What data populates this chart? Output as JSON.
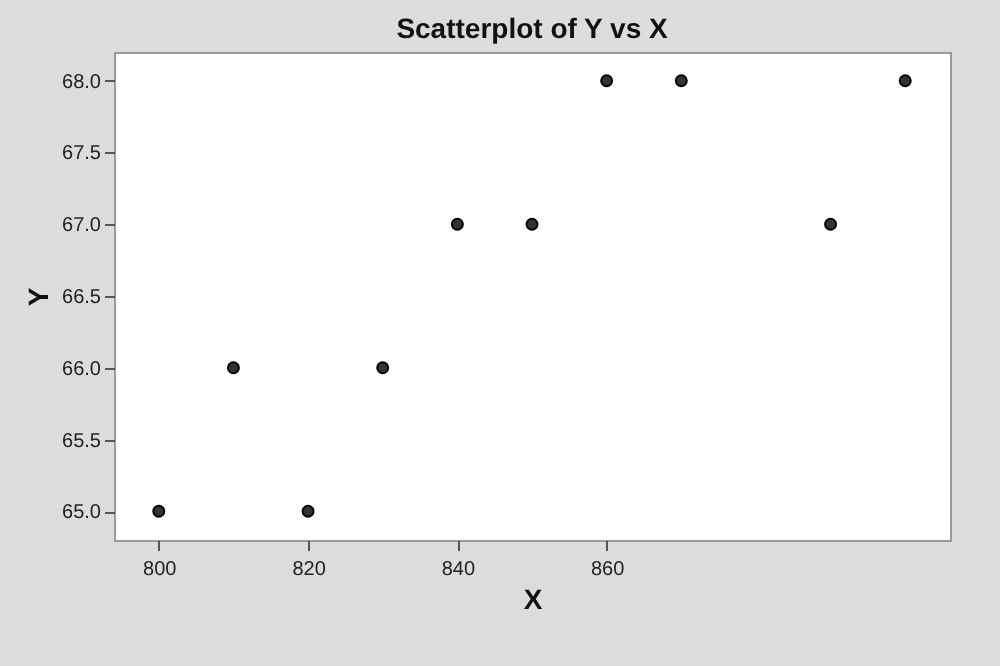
{
  "chart_data": {
    "type": "scatter",
    "title": "Scatterplot of Y vs X",
    "xlabel": "X",
    "ylabel": "Y",
    "x": [
      800,
      810,
      820,
      830,
      840,
      850,
      860,
      870,
      890,
      900
    ],
    "values": [
      65,
      66,
      65,
      66,
      67,
      67,
      68,
      68,
      67,
      68
    ],
    "color": "#333333",
    "marker": "circle",
    "xlim": [
      794,
      906
    ],
    "xticks": [
      800,
      820,
      840,
      860
    ],
    "ylim": [
      64.8,
      68.2
    ],
    "yticks": [
      {
        "value": 65,
        "label": "65.0"
      },
      65.5,
      {
        "value": 66,
        "label": "66.0"
      },
      66.5,
      {
        "value": 67,
        "label": "67.0"
      },
      67.5,
      {
        "value": 68,
        "label": "68.0"
      }
    ],
    "grid": false
  }
}
